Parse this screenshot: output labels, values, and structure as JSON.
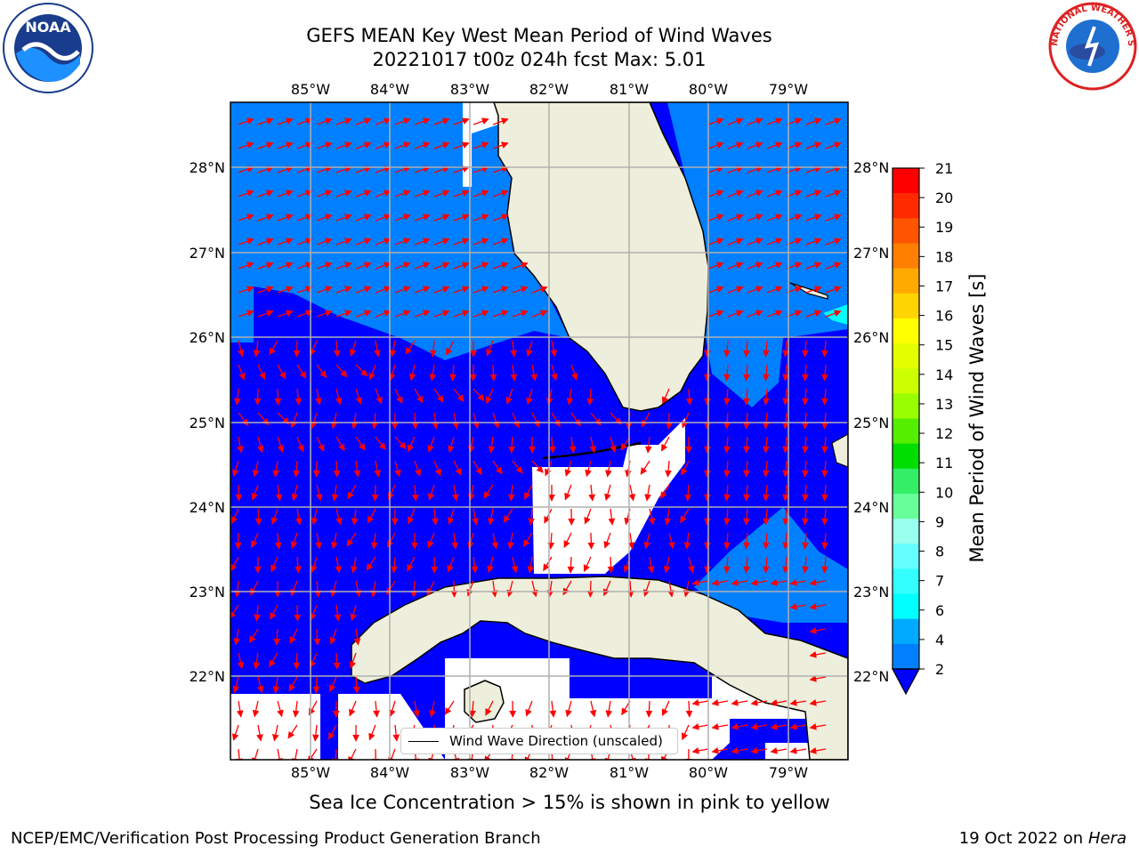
{
  "title": {
    "line1": "GEFS MEAN Key West Mean Period of Wind Waves",
    "line2": "20221017 t00z 024h fcst   Max: 5.01"
  },
  "map": {
    "lon_labels": [
      "85°W",
      "84°W",
      "83°W",
      "82°W",
      "81°W",
      "80°W",
      "79°W"
    ],
    "lat_labels": [
      "28°N",
      "27°N",
      "26°N",
      "25°N",
      "24°N",
      "23°N",
      "22°N"
    ],
    "legend_label": "Wind Wave Direction (unscaled)",
    "colors": {
      "ocean_period_2_4": "#0080ff",
      "ocean_period_below_2": "#0000ff",
      "ocean_period_4_6": "#00ffff",
      "land": "#eeeedc",
      "arrow": "#ff0000",
      "grid": "#b0b0b0"
    }
  },
  "colorbar": {
    "label": "Mean Period of Wind Waves [s]",
    "ticks": [
      "21",
      "20",
      "19",
      "18",
      "17",
      "16",
      "15",
      "14",
      "13",
      "12",
      "11",
      "10",
      "9",
      "8",
      "7",
      "6",
      "4",
      "2"
    ],
    "colors": [
      "#ff0000",
      "#ff2a00",
      "#ff5500",
      "#ff7f00",
      "#ffaa00",
      "#ffd400",
      "#ffff00",
      "#e5ff00",
      "#ccff00",
      "#99ff00",
      "#55ee00",
      "#00dd00",
      "#33ee66",
      "#66ff99",
      "#99ffee",
      "#66ffff",
      "#33ffff",
      "#00ffff",
      "#00aaff",
      "#0080ff"
    ],
    "under_color": "#0000ff"
  },
  "footer": {
    "sea_ice_note": "Sea Ice Concentration > 15% is shown in pink to yellow",
    "left": "NCEP/EMC/Verification Post Processing Product Generation Branch",
    "date": "19 Oct 2022 on ",
    "machine": "Hera"
  },
  "logos": {
    "noaa_text": "NOAA",
    "nws_text": "NATIONAL WEATHER SERVICE"
  }
}
